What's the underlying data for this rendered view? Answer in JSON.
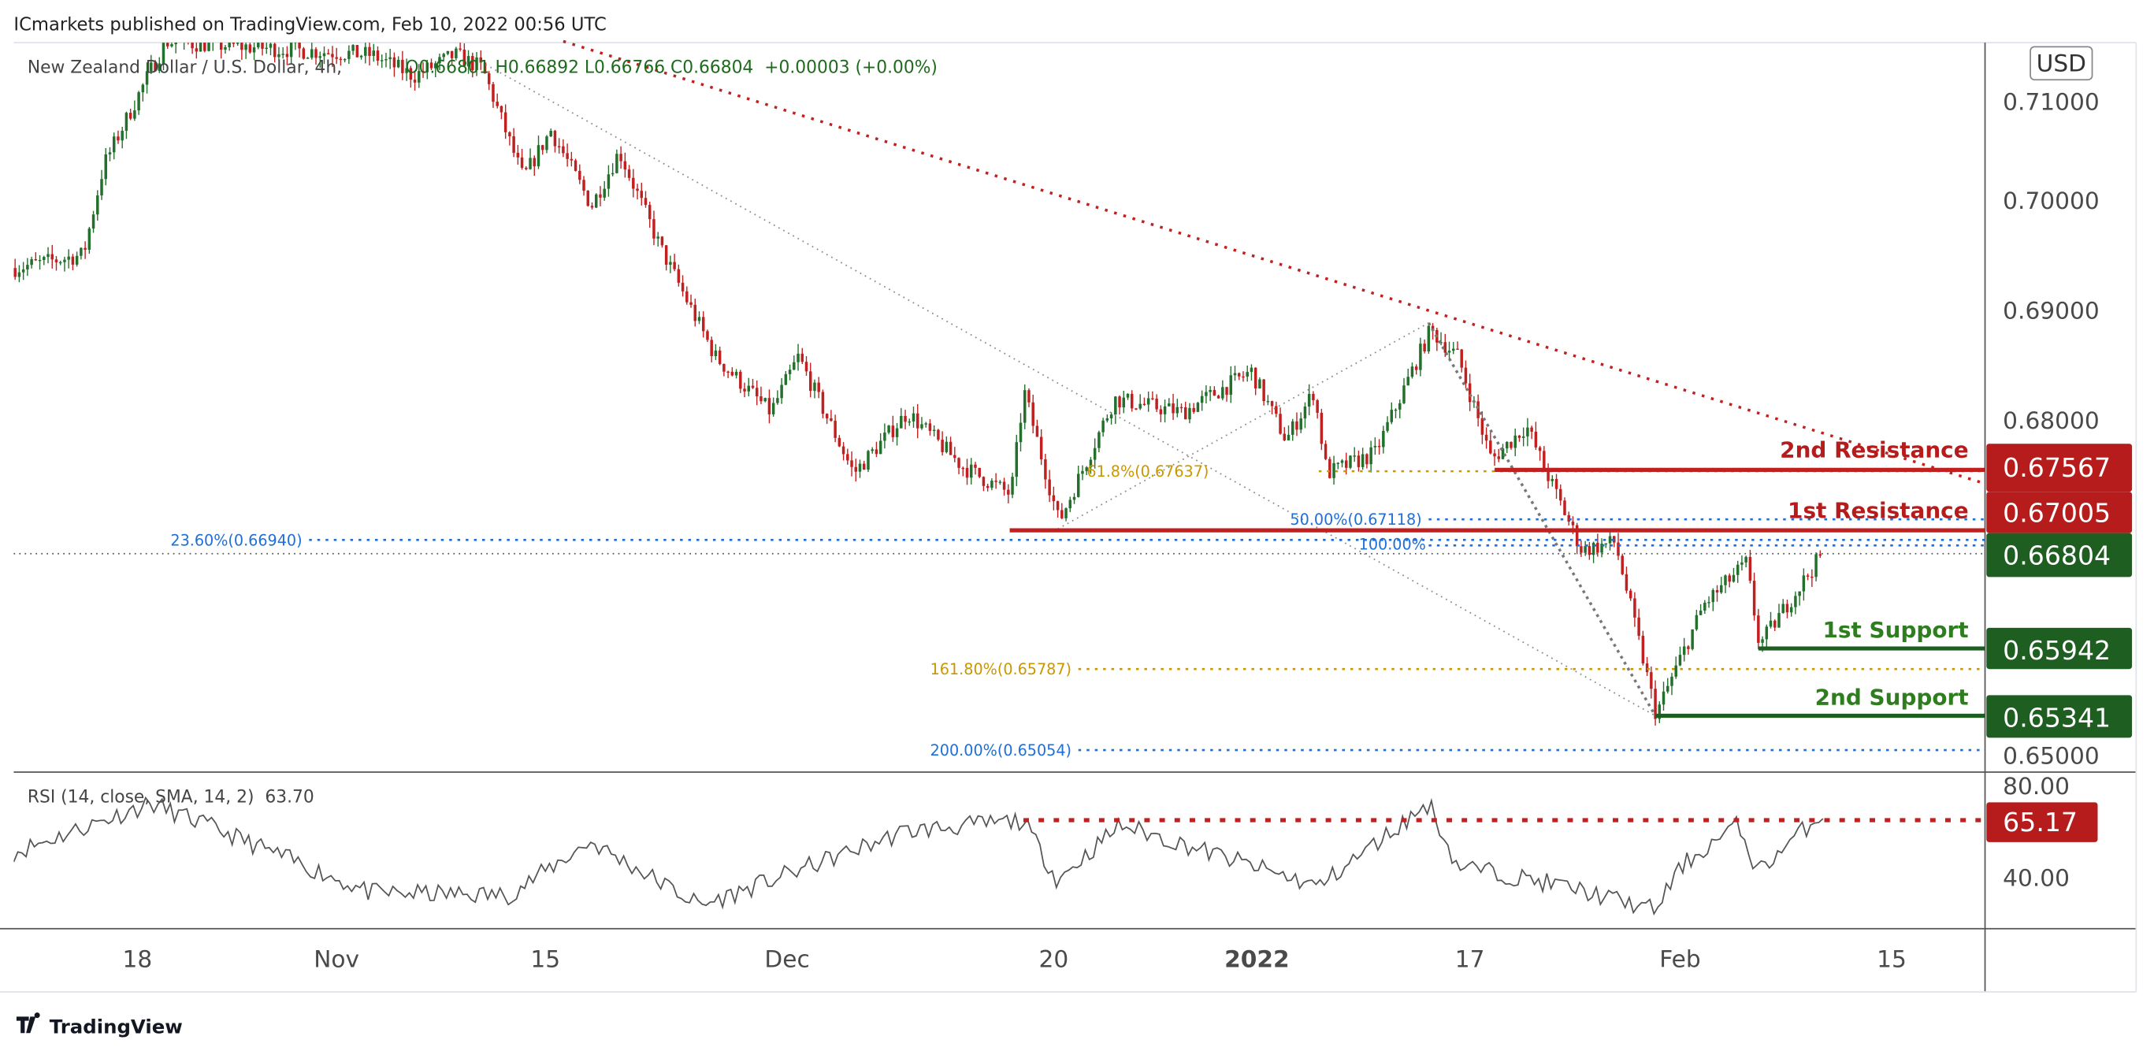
{
  "header": {
    "published": "ICmarkets published on TradingView.com, Feb 10, 2022 00:56 UTC"
  },
  "legend": {
    "symbol": "New Zealand Dollar / U.S. Dollar, 4h,",
    "ohlc": "O0.66801 H0.66892 L0.66766 C0.66804",
    "change": "+0.00003 (+0.00%)"
  },
  "currency": "USD",
  "price_axis": [
    "0.71000",
    "0.70000",
    "0.69000",
    "0.68000",
    "0.65000"
  ],
  "current_price": "0.66804",
  "levels": {
    "r2": {
      "label": "2nd Resistance",
      "price": "0.67567"
    },
    "r1": {
      "label": "1st Resistance",
      "price": "0.67005"
    },
    "s1": {
      "label": "1st Support",
      "price": "0.65942"
    },
    "s2": {
      "label": "2nd Support",
      "price": "0.65341"
    }
  },
  "fib": {
    "f618": "61.8%(0.67637)",
    "f50": "50.00%(0.67118)",
    "f236": "23.60%(0.66940)",
    "f100": "100.00%",
    "f1618": "161.80%(0.65787)",
    "f200": "200.00%(0.65054)"
  },
  "rsi": {
    "legend": "RSI (14, close, SMA, 14, 2)",
    "value": "63.70",
    "axis": [
      "80.00",
      "40.00"
    ],
    "badge": "65.17"
  },
  "time_axis": [
    "18",
    "Nov",
    "15",
    "Dec",
    "20",
    "2022",
    "17",
    "Feb",
    "15"
  ],
  "footer": {
    "brand": "TradingView"
  },
  "colors": {
    "up": "#22702b",
    "down": "#c0201f",
    "resistance": "#b71c1c",
    "support": "#1e5e20",
    "fib_blue": "#1e6fd9",
    "fib_gold": "#c99700"
  },
  "chart_data": {
    "type": "candlestick",
    "title": "New Zealand Dollar / U.S. Dollar, 4h",
    "x_unit": "days since 2021-10-18",
    "ylim": [
      0.645,
      0.715
    ],
    "close_path": [
      [
        -8.5,
        0.6938
      ],
      [
        -3.8,
        0.695
      ],
      [
        -2.4,
        0.7031
      ],
      [
        0.9,
        0.7118
      ],
      [
        1.9,
        0.7142
      ],
      [
        16,
        0.713
      ],
      [
        18.9,
        0.7111
      ],
      [
        21.7,
        0.713
      ],
      [
        23.6,
        0.7118
      ],
      [
        26.4,
        0.7019
      ],
      [
        28.3,
        0.7062
      ],
      [
        31.1,
        0.6994
      ],
      [
        33,
        0.7043
      ],
      [
        35.8,
        0.6957
      ],
      [
        39.6,
        0.6858
      ],
      [
        43.4,
        0.6808
      ],
      [
        45.3,
        0.6858
      ],
      [
        49.1,
        0.6753
      ],
      [
        52.8,
        0.6808
      ],
      [
        56.6,
        0.6759
      ],
      [
        59.9,
        0.6734
      ],
      [
        60.8,
        0.6827
      ],
      [
        63.2,
        0.6709
      ],
      [
        67,
        0.682
      ],
      [
        71.7,
        0.6808
      ],
      [
        76.4,
        0.6845
      ],
      [
        78.8,
        0.6783
      ],
      [
        80.7,
        0.6827
      ],
      [
        81.6,
        0.6753
      ],
      [
        84.9,
        0.6771
      ],
      [
        88.7,
        0.6882
      ],
      [
        90.6,
        0.6858
      ],
      [
        92.9,
        0.6765
      ],
      [
        95.3,
        0.6796
      ],
      [
        96.7,
        0.6753
      ],
      [
        99.1,
        0.6684
      ],
      [
        101.4,
        0.6691
      ],
      [
        104.2,
        0.6536
      ],
      [
        107.5,
        0.6635
      ],
      [
        110.4,
        0.6672
      ],
      [
        111.3,
        0.6598
      ],
      [
        113.2,
        0.6635
      ],
      [
        115.6,
        0.668
      ]
    ],
    "rsi_path": [
      [
        -8.5,
        50
      ],
      [
        0.9,
        73
      ],
      [
        4.7,
        63
      ],
      [
        16,
        31
      ],
      [
        25.5,
        30
      ],
      [
        31.1,
        55
      ],
      [
        38.7,
        25
      ],
      [
        52.8,
        60
      ],
      [
        60.8,
        65
      ],
      [
        63.2,
        37
      ],
      [
        67.5,
        63
      ],
      [
        81.1,
        34
      ],
      [
        88.7,
        73
      ],
      [
        90.6,
        44
      ],
      [
        98.1,
        34
      ],
      [
        104.2,
        23
      ],
      [
        106.1,
        44
      ],
      [
        109.9,
        63
      ],
      [
        111.3,
        41
      ],
      [
        115.6,
        68
      ],
      [
        116,
        65.17
      ]
    ],
    "horizontal_levels": {
      "resistance": [
        0.67567,
        0.67005
      ],
      "support": [
        0.65942,
        0.65341
      ],
      "rsi_level": 65.17
    }
  }
}
